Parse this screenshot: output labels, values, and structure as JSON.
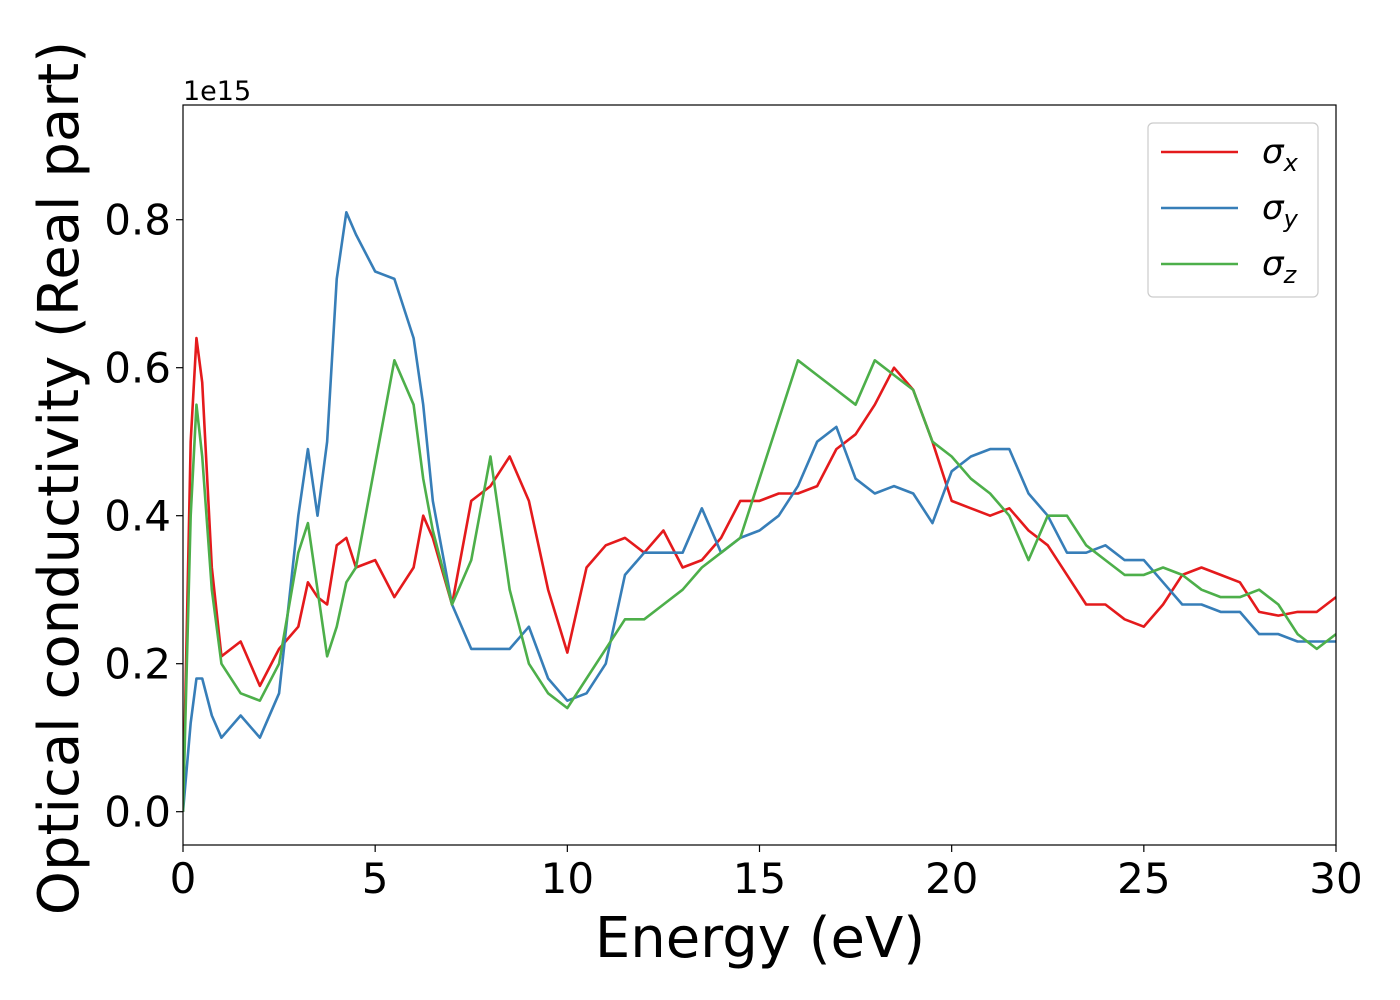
{
  "chart_data": {
    "type": "line",
    "xlabel": "Energy (eV)",
    "ylabel": "Optical conductivity (Real part)",
    "y_offset_label": "1e15",
    "x": [
      0,
      0.2,
      0.35,
      0.5,
      0.75,
      1,
      1.5,
      2,
      2.5,
      3,
      3.25,
      3.5,
      3.75,
      4,
      4.25,
      4.5,
      5,
      5.5,
      6,
      6.25,
      6.5,
      7,
      7.5,
      8,
      8.5,
      9,
      9.5,
      10,
      10.5,
      11,
      11.5,
      12,
      12.5,
      13,
      13.5,
      14,
      14.5,
      15,
      15.5,
      16,
      16.5,
      17,
      17.5,
      18,
      18.5,
      19,
      19.5,
      20,
      20.5,
      21,
      21.5,
      22,
      22.5,
      23,
      23.5,
      24,
      24.5,
      25,
      25.5,
      26,
      26.5,
      27,
      27.5,
      28,
      28.5,
      29,
      29.5,
      30
    ],
    "series": [
      {
        "name": "σx",
        "color": "#e41a1c",
        "values": [
          0,
          0.5,
          0.64,
          0.58,
          0.33,
          0.21,
          0.23,
          0.17,
          0.22,
          0.25,
          0.31,
          0.29,
          0.28,
          0.36,
          0.37,
          0.33,
          0.34,
          0.29,
          0.33,
          0.4,
          0.37,
          0.28,
          0.42,
          0.44,
          0.48,
          0.42,
          0.3,
          0.215,
          0.33,
          0.36,
          0.37,
          0.35,
          0.38,
          0.33,
          0.34,
          0.37,
          0.42,
          0.42,
          0.43,
          0.43,
          0.44,
          0.49,
          0.51,
          0.55,
          0.6,
          0.57,
          0.5,
          0.42,
          0.41,
          0.4,
          0.41,
          0.38,
          0.36,
          0.32,
          0.28,
          0.28,
          0.26,
          0.25,
          0.28,
          0.32,
          0.33,
          0.32,
          0.31,
          0.27,
          0.265,
          0.27,
          0.27,
          0.29
        ]
      },
      {
        "name": "σy",
        "color": "#377eb8",
        "values": [
          0,
          0.12,
          0.18,
          0.18,
          0.13,
          0.1,
          0.13,
          0.1,
          0.16,
          0.4,
          0.49,
          0.4,
          0.5,
          0.72,
          0.81,
          0.78,
          0.73,
          0.72,
          0.64,
          0.55,
          0.42,
          0.28,
          0.22,
          0.22,
          0.22,
          0.25,
          0.18,
          0.15,
          0.16,
          0.2,
          0.32,
          0.35,
          0.35,
          0.35,
          0.41,
          0.35,
          0.37,
          0.38,
          0.4,
          0.44,
          0.5,
          0.52,
          0.45,
          0.43,
          0.44,
          0.43,
          0.39,
          0.46,
          0.48,
          0.49,
          0.49,
          0.43,
          0.4,
          0.35,
          0.35,
          0.36,
          0.34,
          0.34,
          0.31,
          0.28,
          0.28,
          0.27,
          0.27,
          0.24,
          0.24,
          0.23,
          0.23,
          0.23
        ]
      },
      {
        "name": "σz",
        "color": "#4daf4a",
        "values": [
          0,
          0.4,
          0.55,
          0.48,
          0.3,
          0.2,
          0.16,
          0.15,
          0.2,
          0.35,
          0.39,
          0.3,
          0.21,
          0.25,
          0.31,
          0.33,
          0.47,
          0.61,
          0.55,
          0.45,
          0.38,
          0.28,
          0.34,
          0.48,
          0.3,
          0.2,
          0.16,
          0.14,
          0.18,
          0.22,
          0.26,
          0.26,
          0.28,
          0.3,
          0.33,
          0.35,
          0.37,
          0.45,
          0.53,
          0.61,
          0.59,
          0.57,
          0.55,
          0.61,
          0.59,
          0.57,
          0.5,
          0.48,
          0.45,
          0.43,
          0.4,
          0.34,
          0.4,
          0.4,
          0.36,
          0.34,
          0.32,
          0.32,
          0.33,
          0.32,
          0.3,
          0.29,
          0.29,
          0.3,
          0.28,
          0.24,
          0.22,
          0.24
        ]
      }
    ],
    "xlim": [
      0,
      30
    ],
    "xticks": [
      0,
      5,
      10,
      15,
      20,
      25,
      30
    ],
    "ylim": [
      -0.045,
      0.955
    ],
    "yticks": [
      {
        "value": 0,
        "label": "0.0"
      },
      0.2,
      0.4,
      0.6,
      0.8
    ],
    "legend": "upper right",
    "grid": false
  }
}
